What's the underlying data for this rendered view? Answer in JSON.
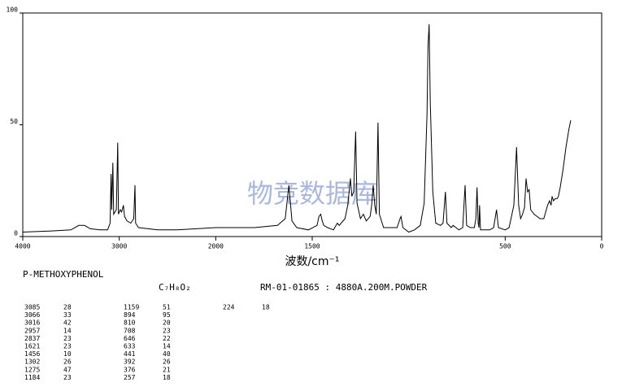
{
  "chart_data": {
    "type": "line",
    "title": "P-METHOXYPHENOL",
    "formula": "C₇H₈O₂",
    "subtitle": "RM-01-01865 : 4880A.200M.POWDER",
    "xlabel": "波数/cm⁻¹",
    "watermark": "物竞数据库",
    "color": "#000000",
    "xlim": [
      4000,
      0
    ],
    "xticks": [
      4000,
      3000,
      2000,
      1500,
      500,
      0
    ],
    "ylim": [
      0,
      100
    ],
    "yticks": [
      0,
      50,
      100
    ],
    "x": [
      4000,
      3700,
      3500,
      3420,
      3360,
      3300,
      3200,
      3120,
      3095,
      3085,
      3078,
      3066,
      3058,
      3030,
      3016,
      3008,
      2990,
      2975,
      2957,
      2945,
      2920,
      2880,
      2850,
      2837,
      2830,
      2800,
      2600,
      2400,
      2200,
      2000,
      1800,
      1680,
      1640,
      1621,
      1605,
      1580,
      1520,
      1475,
      1465,
      1456,
      1448,
      1440,
      1420,
      1390,
      1370,
      1360,
      1330,
      1316,
      1302,
      1295,
      1285,
      1275,
      1268,
      1250,
      1235,
      1220,
      1200,
      1192,
      1184,
      1176,
      1168,
      1159,
      1152,
      1130,
      1090,
      1060,
      1045,
      1040,
      1030,
      1000,
      970,
      940,
      920,
      905,
      900,
      894,
      888,
      875,
      860,
      835,
      822,
      810,
      802,
      780,
      770,
      755,
      740,
      720,
      708,
      700,
      680,
      660,
      652,
      646,
      640,
      636,
      633,
      628,
      600,
      580,
      560,
      545,
      535,
      500,
      480,
      470,
      455,
      441,
      430,
      420,
      410,
      400,
      392,
      384,
      376,
      368,
      350,
      320,
      300,
      280,
      270,
      262,
      257,
      250,
      240,
      230,
      224,
      215,
      200,
      185,
      170,
      160
    ],
    "values": [
      2,
      2.5,
      3,
      5,
      5,
      3.5,
      3,
      3,
      6,
      28,
      12,
      33,
      10,
      12,
      42,
      10,
      12,
      11,
      14,
      9,
      7,
      6,
      8,
      23,
      6,
      4,
      3,
      3,
      3.5,
      4,
      4,
      5,
      8,
      23,
      7,
      4,
      3,
      5,
      9,
      10,
      7,
      5,
      4,
      3,
      6,
      5,
      8,
      14,
      26,
      18,
      20,
      47,
      15,
      8,
      10,
      7,
      9,
      14,
      23,
      14,
      10,
      51,
      10,
      4,
      4,
      4,
      8,
      9,
      4,
      2,
      3,
      5,
      15,
      55,
      85,
      95,
      60,
      20,
      6,
      5,
      6,
      20,
      6,
      4,
      5,
      4,
      3,
      4,
      23,
      5,
      4,
      4,
      8,
      22,
      6,
      4,
      14,
      3,
      3,
      3,
      4,
      12,
      4,
      3,
      4,
      8,
      14,
      40,
      14,
      8,
      10,
      13,
      26,
      20,
      21,
      12,
      10,
      8,
      8,
      14,
      16,
      14,
      18,
      16,
      17,
      17,
      18,
      22,
      30,
      40,
      48,
      52
    ],
    "peak_table": [
      [
        3085,
        28
      ],
      [
        3066,
        33
      ],
      [
        3016,
        42
      ],
      [
        2957,
        14
      ],
      [
        2837,
        23
      ],
      [
        1621,
        23
      ],
      [
        1456,
        10
      ],
      [
        1302,
        26
      ],
      [
        1275,
        47
      ],
      [
        1184,
        23
      ],
      [
        1159,
        51
      ],
      [
        894,
        95
      ],
      [
        810,
        20
      ],
      [
        708,
        23
      ],
      [
        646,
        22
      ],
      [
        633,
        14
      ],
      [
        441,
        40
      ],
      [
        392,
        26
      ],
      [
        376,
        21
      ],
      [
        257,
        18
      ],
      [
        224,
        18
      ]
    ]
  }
}
